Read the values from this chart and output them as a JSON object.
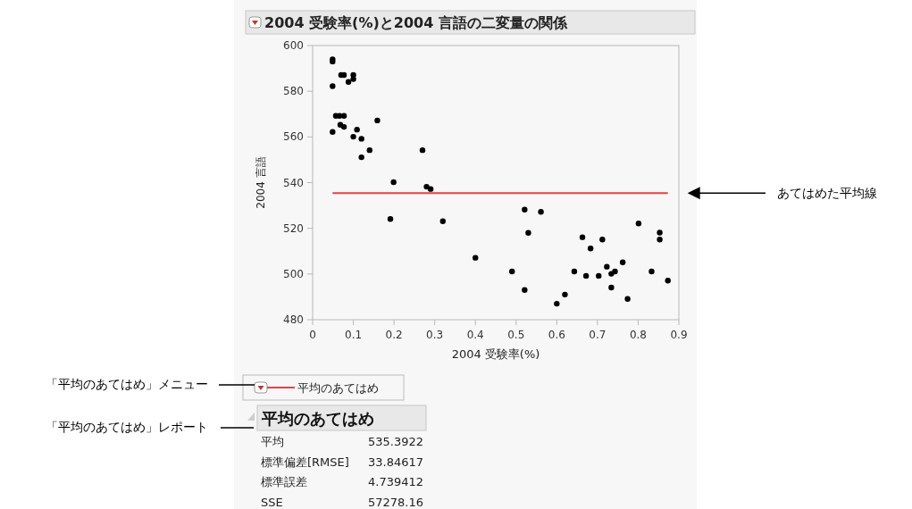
{
  "chart_data": {
    "type": "scatter",
    "title": "2004 受験率(%)と2004 言語の二変量の関係",
    "xlabel": "2004 受験率(%)",
    "ylabel": "2004 言語",
    "xlim": [
      0,
      0.9
    ],
    "xticks": [
      0,
      0.1,
      0.2,
      0.3,
      0.4,
      0.5,
      0.6,
      0.7,
      0.8,
      0.9
    ],
    "ylim": [
      480,
      600
    ],
    "yticks": [
      480,
      500,
      520,
      540,
      560,
      580,
      600
    ],
    "grid": false,
    "legend": "bottom left",
    "series": [
      {
        "marker": "circle",
        "color": "#000000",
        "x": [
          0.049,
          0.049,
          0.049,
          0.07,
          0.077,
          0.088,
          0.1,
          0.1,
          0.057,
          0.066,
          0.077,
          0.049,
          0.068,
          0.077,
          0.1,
          0.109,
          0.12,
          0.159,
          0.14,
          0.12,
          0.27,
          0.199,
          0.28,
          0.29,
          0.191,
          0.32,
          0.4,
          0.521,
          0.561,
          0.53,
          0.49,
          0.521,
          0.6,
          0.62,
          0.643,
          0.663,
          0.672,
          0.683,
          0.703,
          0.712,
          0.723,
          0.734,
          0.743,
          0.734,
          0.762,
          0.774,
          0.801,
          0.833,
          0.853,
          0.853,
          0.873
        ],
        "values": [
          594,
          593,
          582.2,
          587.1,
          587.1,
          584.1,
          585.3,
          587.1,
          569.2,
          569.2,
          569.2,
          562.2,
          565.3,
          564.4,
          560.1,
          563.2,
          559.2,
          567.2,
          554.2,
          551.1,
          554.2,
          540.2,
          538.2,
          537.2,
          524.1,
          523.1,
          507.1,
          528.2,
          527.2,
          518,
          501.1,
          493,
          487,
          491,
          501.1,
          516.1,
          499.2,
          511.2,
          499.2,
          515.1,
          503.2,
          500.1,
          501.1,
          494.1,
          505.1,
          489.1,
          522.1,
          501.1,
          518.1,
          515.1,
          497.1
        ]
      },
      {
        "type": "line",
        "marker": "none",
        "name": "平均のあてはめ",
        "color": "#e2424a",
        "x": [
          0.049,
          0.873
        ],
        "values": [
          535.4,
          535.4
        ]
      }
    ],
    "annotations": [
      "あてはめた平均線",
      "「平均のあてはめ」メニュー",
      "「平均のあてはめ」レポート",
      "平均のあてはめ",
      "平均",
      "535.3922",
      "標準偏差[RMSE]",
      "33.84617",
      "標準誤差",
      "4.739412",
      "SSE",
      "57278.16"
    ]
  }
}
